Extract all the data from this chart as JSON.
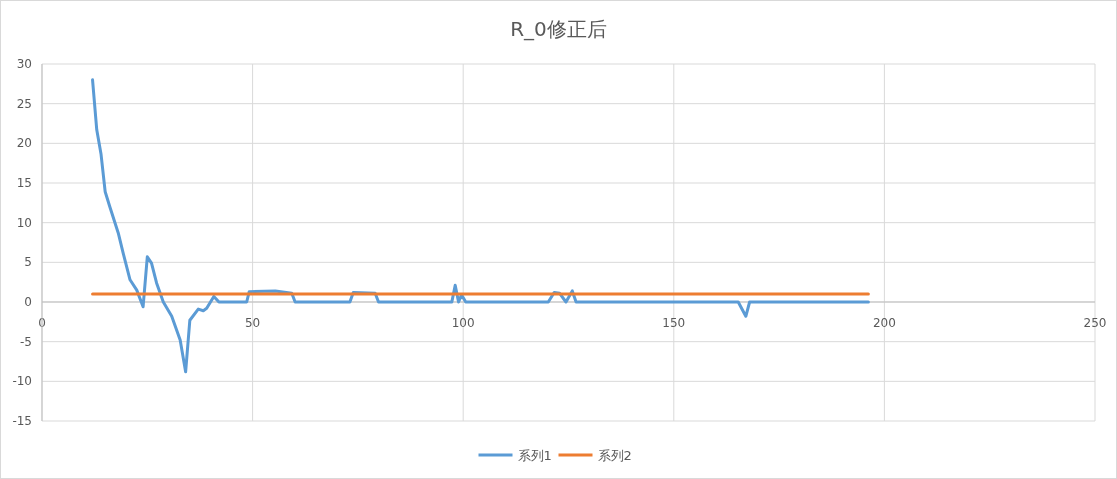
{
  "chart_data": {
    "type": "line",
    "title": "R_0修正后",
    "xlim": [
      0,
      250
    ],
    "xticks": [
      0,
      50,
      100,
      150,
      200,
      250
    ],
    "ylim": [
      -15,
      30
    ],
    "yticks": [
      -15,
      -10,
      -5,
      0,
      5,
      10,
      15,
      20,
      25,
      30
    ],
    "grid": true,
    "legend": "bottom",
    "marker": "none",
    "line_style": "solid",
    "series": [
      {
        "name": "系列1",
        "color": "#5b9bd5",
        "x": [
          12,
          13,
          14,
          15,
          16.1,
          18.1,
          19.3,
          20.9,
          22.5,
          24,
          25,
          26,
          27.2,
          28.8,
          30.8,
          32.8,
          34.1,
          35.1,
          37.1,
          38.3,
          39.1,
          40.8,
          42,
          48.6,
          49.2,
          55.4,
          59.3,
          60.1,
          73.1,
          73.9,
          79.1,
          79.9,
          97.3,
          98.1,
          98.9,
          99.6,
          100.6,
          120.2,
          121.6,
          122.9,
          124.4,
          125.9,
          126.8,
          165.3,
          167.1,
          168,
          196.2
        ],
        "values": [
          28,
          21.7,
          18.7,
          13.9,
          12,
          8.7,
          6.1,
          2.8,
          1.5,
          -0.6,
          5.7,
          4.9,
          2.4,
          0,
          -1.8,
          -4.8,
          -8.8,
          -2.3,
          -0.9,
          -1.1,
          -0.8,
          0.7,
          0,
          0,
          1.3,
          1.4,
          1.1,
          0,
          0,
          1.2,
          1.1,
          0,
          0,
          2.1,
          0,
          0.9,
          0,
          0,
          1.2,
          1.1,
          0,
          1.4,
          0,
          0,
          -1.8,
          0,
          0
        ]
      },
      {
        "name": "系列2",
        "color": "#ed7d31",
        "x": [
          12,
          196.2
        ],
        "values": [
          1,
          1
        ]
      }
    ]
  }
}
